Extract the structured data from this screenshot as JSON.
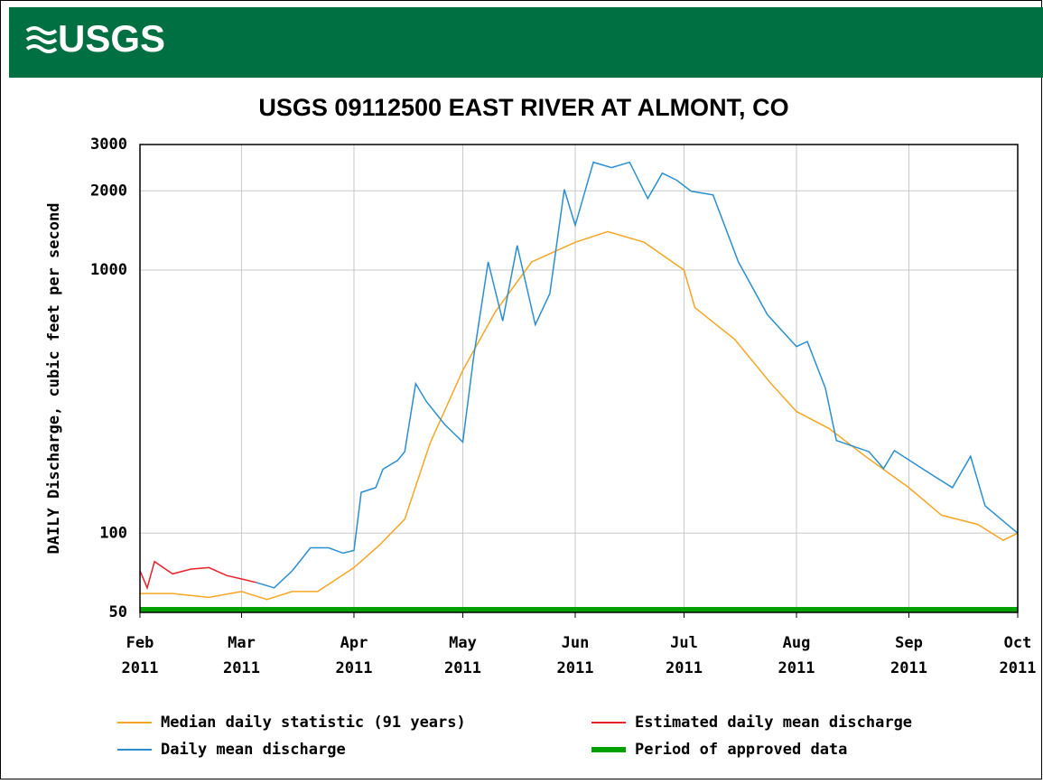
{
  "header": {
    "logo": "USGS"
  },
  "chart_data": {
    "type": "line",
    "title": "USGS 09112500 EAST RIVER AT ALMONT, CO",
    "y_label": "DAILY Discharge, cubic feet per second",
    "log_y": true,
    "grid": true,
    "xlim": [
      "2011-02-01",
      "2011-10-01"
    ],
    "xticks": [
      {
        "value": "2011-02-01",
        "label": "Feb 2011"
      },
      {
        "value": "2011-03-01",
        "label": "Mar 2011"
      },
      {
        "value": "2011-04-01",
        "label": "Apr 2011"
      },
      {
        "value": "2011-05-01",
        "label": "May 2011"
      },
      {
        "value": "2011-06-01",
        "label": "Jun 2011"
      },
      {
        "value": "2011-07-01",
        "label": "Jul 2011"
      },
      {
        "value": "2011-08-01",
        "label": "Aug 2011"
      },
      {
        "value": "2011-09-01",
        "label": "Sep 2011"
      },
      {
        "value": "2011-10-01",
        "label": "Oct 2011"
      }
    ],
    "ylim": [
      50,
      3000
    ],
    "yticks": [
      50,
      100,
      1000,
      2000,
      3000
    ],
    "series": [
      {
        "name": "Median daily statistic (91 years)",
        "color": "#f5a623",
        "x": [
          "2011-02-01",
          "2011-02-10",
          "2011-02-20",
          "2011-03-01",
          "2011-03-08",
          "2011-03-15",
          "2011-03-22",
          "2011-04-01",
          "2011-04-08",
          "2011-04-15",
          "2011-04-22",
          "2011-05-01",
          "2011-05-10",
          "2011-05-20",
          "2011-06-01",
          "2011-06-10",
          "2011-06-20",
          "2011-07-01",
          "2011-07-04",
          "2011-07-15",
          "2011-07-25",
          "2011-08-01",
          "2011-08-10",
          "2011-08-20",
          "2011-09-01",
          "2011-09-10",
          "2011-09-20",
          "2011-09-27",
          "2011-10-01"
        ],
        "values": [
          59,
          59,
          57,
          60,
          56,
          60,
          60,
          74,
          90,
          113,
          220,
          416,
          695,
          1074,
          1276,
          1400,
          1276,
          1000,
          720,
          545,
          370,
          290,
          250,
          196,
          149,
          117,
          108,
          94,
          100
        ]
      },
      {
        "name": "Estimated daily mean discharge",
        "color": "#e8202a",
        "x": [
          "2011-02-01",
          "2011-02-03",
          "2011-02-05",
          "2011-02-10",
          "2011-02-15",
          "2011-02-20",
          "2011-02-25",
          "2011-03-01",
          "2011-03-05"
        ],
        "values": [
          72,
          62,
          78,
          70,
          73,
          74,
          69,
          67,
          65
        ]
      },
      {
        "name": "Daily mean discharge",
        "color": "#2a8fd0",
        "x": [
          "2011-03-05",
          "2011-03-10",
          "2011-03-15",
          "2011-03-20",
          "2011-03-25",
          "2011-03-29",
          "2011-04-01",
          "2011-04-03",
          "2011-04-07",
          "2011-04-09",
          "2011-04-13",
          "2011-04-15",
          "2011-04-18",
          "2011-04-21",
          "2011-04-26",
          "2011-05-01",
          "2011-05-04",
          "2011-05-08",
          "2011-05-12",
          "2011-05-16",
          "2011-05-21",
          "2011-05-25",
          "2011-05-29",
          "2011-06-01",
          "2011-06-06",
          "2011-06-11",
          "2011-06-16",
          "2011-06-21",
          "2011-06-25",
          "2011-06-29",
          "2011-07-03",
          "2011-07-09",
          "2011-07-16",
          "2011-07-24",
          "2011-08-01",
          "2011-08-04",
          "2011-08-09",
          "2011-08-12",
          "2011-08-21",
          "2011-08-25",
          "2011-08-28",
          "2011-09-07",
          "2011-09-13",
          "2011-09-18",
          "2011-09-22",
          "2011-10-01"
        ],
        "values": [
          65,
          62,
          72,
          88,
          88,
          84,
          86,
          143,
          149,
          175,
          189,
          204,
          370,
          316,
          259,
          222,
          467,
          1074,
          641,
          1240,
          620,
          815,
          2026,
          1480,
          2570,
          2450,
          2570,
          1870,
          2335,
          2195,
          1992,
          1930,
          1074,
          676,
          512,
          535,
          355,
          225,
          204,
          176,
          206,
          168,
          149,
          196,
          127,
          100
        ]
      }
    ],
    "approved_period": {
      "name": "Period of approved data",
      "color": "#00a000",
      "x": [
        "2011-02-01",
        "2011-10-01"
      ]
    }
  }
}
